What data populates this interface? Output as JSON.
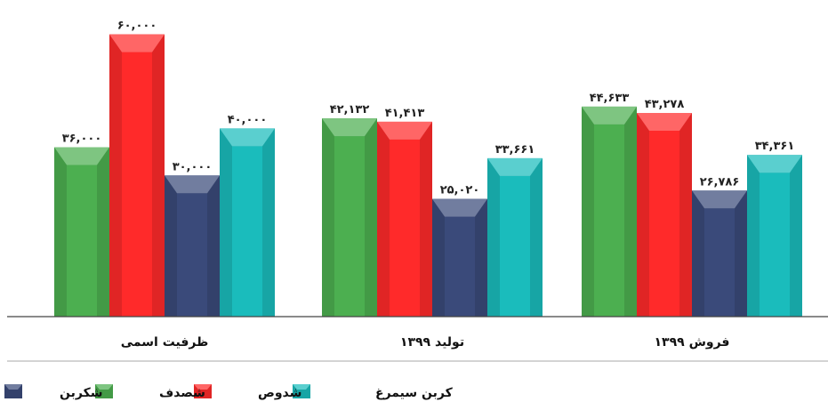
{
  "chart_data": {
    "type": "bar",
    "categories": [
      "ظرفیت اسمی",
      "تولید ۱۳۹۹",
      "فروش ۱۳۹۹"
    ],
    "series": [
      {
        "name": "شصدف",
        "color": "#4CAF50",
        "values": [
          36000,
          42132,
          44633
        ],
        "labels": [
          "۳۶,۰۰۰",
          "۴۲,۱۳۲",
          "۴۴,۶۳۳"
        ]
      },
      {
        "name": "شدوص",
        "color": "#FF2A2A",
        "values": [
          60000,
          41413,
          43278
        ],
        "labels": [
          "۶۰,۰۰۰",
          "۴۱,۴۱۳",
          "۴۳,۲۷۸"
        ]
      },
      {
        "name": "شکربن",
        "color": "#3A4A7A",
        "values": [
          30000,
          25020,
          26786
        ],
        "labels": [
          "۳۰,۰۰۰",
          "۲۵,۰۲۰",
          "۲۶,۷۸۶"
        ]
      },
      {
        "name": "کربن سیمرغ",
        "color": "#1ABCBC",
        "values": [
          40000,
          33661,
          34361
        ],
        "labels": [
          "۴۰,۰۰۰",
          "۳۳,۶۶۱",
          "۳۴,۳۶۱"
        ]
      }
    ],
    "legend_order": [
      "کربن سیمرغ",
      "شدوص",
      "شصدف",
      "شکربن"
    ],
    "ylim": [
      0,
      62000
    ],
    "grid": false,
    "legend_position": "bottom"
  }
}
